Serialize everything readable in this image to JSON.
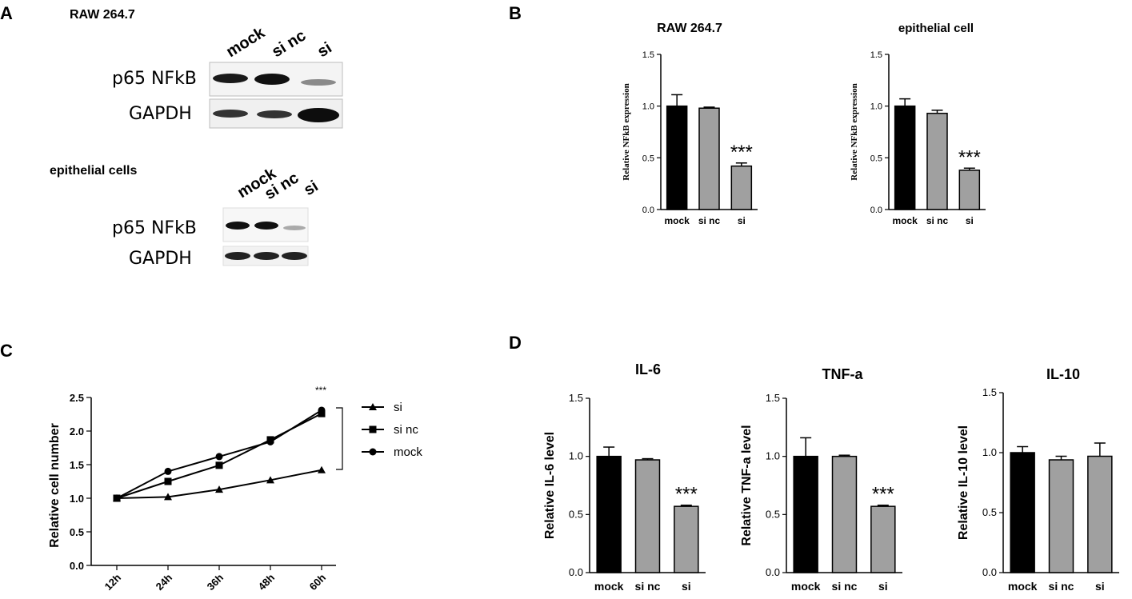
{
  "panel_labels": {
    "a": "A",
    "b": "B",
    "c": "C",
    "d": "D"
  },
  "panel_a": {
    "raw": {
      "title": "RAW 264.7",
      "lanes": [
        "mock",
        "si nc",
        "si"
      ],
      "rows": [
        "p65 NFkB",
        "GAPDH"
      ]
    },
    "epi": {
      "title": "epithelial cells",
      "lanes": [
        "mock",
        "si nc",
        "si"
      ],
      "rows": [
        "p65 NFkB",
        "GAPDH"
      ]
    }
  },
  "colors": {
    "black": "#000000",
    "gray": "#a0a0a0",
    "dark_gray": "#7a7a7a"
  },
  "chart_data": [
    {
      "id": "b1",
      "type": "bar",
      "title": "RAW 264.7",
      "ylabel": "Relative NFkB expression",
      "categories": [
        "mock",
        "si nc",
        "si"
      ],
      "values": [
        1.0,
        0.98,
        0.42
      ],
      "errors": [
        0.11,
        0.01,
        0.03
      ],
      "colors": [
        "#000000",
        "#a0a0a0",
        "#a0a0a0"
      ],
      "ylim": [
        0,
        1.5
      ],
      "yticks": [
        "0.0",
        "0.5",
        "1.0",
        "1.5"
      ],
      "significance": [
        "",
        "",
        "***"
      ]
    },
    {
      "id": "b2",
      "type": "bar",
      "title": "epithelial cell",
      "ylabel": "Relative NFkB expression",
      "categories": [
        "mock",
        "si nc",
        "si"
      ],
      "values": [
        1.0,
        0.93,
        0.38
      ],
      "errors": [
        0.07,
        0.03,
        0.02
      ],
      "colors": [
        "#000000",
        "#a0a0a0",
        "#a0a0a0"
      ],
      "ylim": [
        0,
        1.5
      ],
      "yticks": [
        "0.0",
        "0.5",
        "1.0",
        "1.5"
      ],
      "significance": [
        "",
        "",
        "***"
      ]
    },
    {
      "id": "c",
      "type": "line",
      "ylabel": "Relative cell number",
      "x": [
        "12h",
        "24h",
        "36h",
        "48h",
        "60h"
      ],
      "ylim": [
        0,
        2.5
      ],
      "yticks": [
        "0.0",
        "0.5",
        "1.0",
        "1.5",
        "2.0",
        "2.5"
      ],
      "series": [
        {
          "name": "si",
          "marker": "triangle",
          "values": [
            1.0,
            1.02,
            1.13,
            1.27,
            1.42
          ]
        },
        {
          "name": "si nc",
          "marker": "square",
          "values": [
            1.0,
            1.25,
            1.49,
            1.87,
            2.26
          ]
        },
        {
          "name": "mock",
          "marker": "circle",
          "values": [
            1.0,
            1.4,
            1.62,
            1.84,
            2.31
          ]
        }
      ],
      "annotation": "***",
      "legend": "right"
    },
    {
      "id": "d1",
      "type": "bar",
      "title": "IL-6",
      "ylabel": "Relative IL-6 level",
      "categories": [
        "mock",
        "si nc",
        "si"
      ],
      "values": [
        1.0,
        0.97,
        0.57
      ],
      "errors": [
        0.08,
        0.01,
        0.01
      ],
      "colors": [
        "#000000",
        "#a0a0a0",
        "#a0a0a0"
      ],
      "ylim": [
        0,
        1.5
      ],
      "yticks": [
        "0.0",
        "0.5",
        "1.0",
        "1.5"
      ],
      "significance": [
        "",
        "",
        "***"
      ]
    },
    {
      "id": "d2",
      "type": "bar",
      "title": "TNF-a",
      "ylabel": "Relative TNF-a level",
      "categories": [
        "mock",
        "si nc",
        "si"
      ],
      "values": [
        1.0,
        1.0,
        0.57
      ],
      "errors": [
        0.16,
        0.01,
        0.01
      ],
      "colors": [
        "#000000",
        "#a0a0a0",
        "#a0a0a0"
      ],
      "ylim": [
        0,
        1.5
      ],
      "yticks": [
        "0.0",
        "0.5",
        "1.0",
        "1.5"
      ],
      "significance": [
        "",
        "",
        "***"
      ]
    },
    {
      "id": "d3",
      "type": "bar",
      "title": "IL-10",
      "ylabel": "Relative IL-10 level",
      "categories": [
        "mock",
        "si nc",
        "si"
      ],
      "values": [
        1.0,
        0.94,
        0.97
      ],
      "errors": [
        0.05,
        0.03,
        0.11
      ],
      "colors": [
        "#000000",
        "#a0a0a0",
        "#a0a0a0"
      ],
      "ylim": [
        0,
        1.5
      ],
      "yticks": [
        "0.0",
        "0.5",
        "1.0",
        "1.5"
      ],
      "significance": [
        "",
        "",
        ""
      ]
    }
  ]
}
